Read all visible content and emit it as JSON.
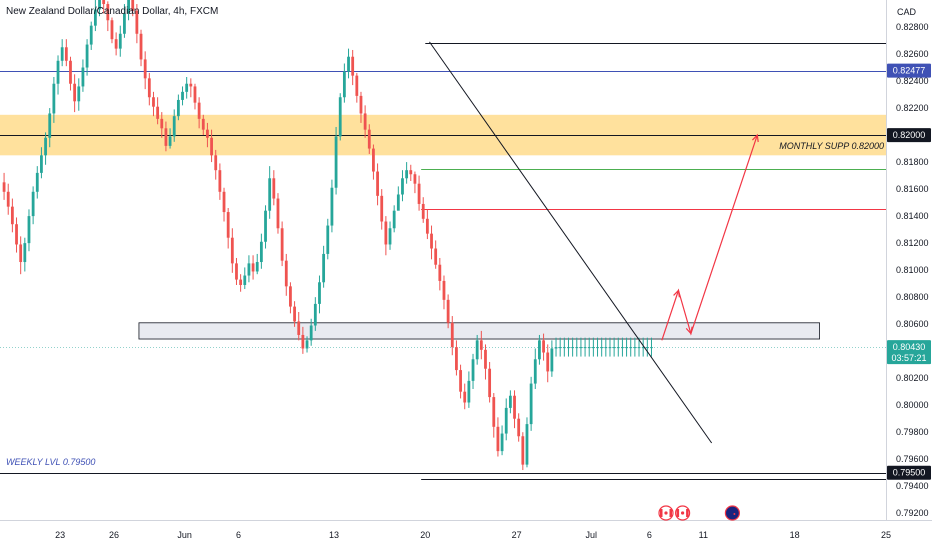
{
  "chart_data": {
    "type": "candlestick",
    "title": "New Zealand Dollar/Canadian Dollar, 4h, FXCM",
    "currency": "CAD",
    "y_range": [
      0.7915,
      0.83
    ],
    "y_ticks": [
      "0.82800",
      "0.82600",
      "0.82400",
      "0.82200",
      "0.82000",
      "0.81800",
      "0.81600",
      "0.81400",
      "0.81200",
      "0.81000",
      "0.80800",
      "0.80600",
      "0.80400",
      "0.80200",
      "0.80000",
      "0.79800",
      "0.79600",
      "0.79400",
      "0.79200"
    ],
    "x_ticks": [
      {
        "label": "23",
        "bar": 14
      },
      {
        "label": "26",
        "bar": 27
      },
      {
        "label": "Jun",
        "bar": 44
      },
      {
        "label": "6",
        "bar": 57
      },
      {
        "label": "13",
        "bar": 80
      },
      {
        "label": "20",
        "bar": 102
      },
      {
        "label": "27",
        "bar": 124
      },
      {
        "label": "Jul",
        "bar": 142
      },
      {
        "label": "6",
        "bar": 156
      },
      {
        "label": "11",
        "bar": 169
      },
      {
        "label": "18",
        "bar": 191
      },
      {
        "label": "25",
        "bar": 213
      }
    ],
    "price_levels": [
      {
        "value": 0.82477,
        "label": "0.82477",
        "color": "#3f51b5",
        "extent": "full"
      },
      {
        "value": 0.82,
        "label": "0.82000",
        "color": "#131722",
        "extent": "full"
      },
      {
        "value": 0.795,
        "label": "0.79500",
        "color": "#131722",
        "extent": "full"
      },
      {
        "value": 0.8043,
        "label": "0.80430",
        "color": "#26a69a",
        "extent": "full",
        "sublabel": "03:57:21"
      }
    ],
    "horizontal_rays": [
      {
        "value": 0.8268,
        "from_bar": 102,
        "color": "#131722"
      },
      {
        "value": 0.8175,
        "from_bar": 101,
        "color": "#4caf50"
      },
      {
        "value": 0.8145,
        "from_bar": 101,
        "color": "#f23645"
      },
      {
        "value": 0.7945,
        "from_bar": 101,
        "color": "#131722"
      }
    ],
    "zones": [
      {
        "label": "MONTHLY SUPP 0.82000",
        "from": 0.8185,
        "to": 0.8215,
        "color": "#ffc94d"
      },
      {
        "label": "",
        "from": 0.8049,
        "to": 0.8061,
        "from_bar": 33,
        "to_bar": 197,
        "color": "#e0e3eb"
      }
    ],
    "trendline": {
      "from": {
        "bar": 103,
        "value": 0.8269
      },
      "to": {
        "bar": 171,
        "value": 0.7972
      }
    },
    "projection": [
      {
        "bar": 159,
        "value": 0.8048
      },
      {
        "bar": 163,
        "value": 0.8085
      },
      {
        "bar": 166,
        "value": 0.8053
      },
      {
        "bar": 182,
        "value": 0.82
      }
    ],
    "annotations": [
      {
        "text": "MONTHLY SUPP 0.82000",
        "value": 0.8192,
        "color": "#131722"
      },
      {
        "text": "WEEKLY LVL 0.79500",
        "value": 0.7958,
        "color": "#3f51b5"
      }
    ],
    "event_icons": [
      {
        "name": "canada-flag-icon",
        "bar": 160
      },
      {
        "name": "canada-flag-icon",
        "bar": 164
      },
      {
        "name": "new-zealand-flag-icon",
        "bar": 176
      }
    ],
    "colors": {
      "up": "#26a69a",
      "down": "#ef5350",
      "red_line": "#f23645"
    },
    "candles": [
      [
        0.8165,
        0.8158,
        0.8172,
        0.8152
      ],
      [
        0.8158,
        0.8147,
        0.8164,
        0.8141
      ],
      [
        0.8147,
        0.8134,
        0.8153,
        0.8128
      ],
      [
        0.8134,
        0.8119,
        0.8139,
        0.8113
      ],
      [
        0.8119,
        0.8106,
        0.8125,
        0.8097
      ],
      [
        0.8106,
        0.812,
        0.8124,
        0.8099
      ],
      [
        0.812,
        0.814,
        0.8145,
        0.8114
      ],
      [
        0.814,
        0.8158,
        0.8162,
        0.8134
      ],
      [
        0.8158,
        0.8172,
        0.8177,
        0.8153
      ],
      [
        0.8172,
        0.8185,
        0.8191,
        0.8168
      ],
      [
        0.8185,
        0.8198,
        0.8202,
        0.8178
      ],
      [
        0.8198,
        0.8216,
        0.822,
        0.8191
      ],
      [
        0.8216,
        0.8238,
        0.8243,
        0.8209
      ],
      [
        0.8238,
        0.8255,
        0.8259,
        0.823
      ],
      [
        0.8255,
        0.8265,
        0.8271,
        0.8251
      ],
      [
        0.8265,
        0.8255,
        0.8271,
        0.8251
      ],
      [
        0.8255,
        0.8238,
        0.8258,
        0.8233
      ],
      [
        0.8238,
        0.8225,
        0.8245,
        0.8217
      ],
      [
        0.8225,
        0.8236,
        0.8242,
        0.8218
      ],
      [
        0.8236,
        0.825,
        0.8256,
        0.8232
      ],
      [
        0.825,
        0.8267,
        0.8271,
        0.8244
      ],
      [
        0.8267,
        0.8281,
        0.8284,
        0.8263
      ],
      [
        0.8281,
        0.8293,
        0.8301,
        0.8277
      ],
      [
        0.8293,
        0.8302,
        0.8307,
        0.8288
      ],
      [
        0.8302,
        0.8297,
        0.8307,
        0.829
      ],
      [
        0.8297,
        0.8285,
        0.8299,
        0.8277
      ],
      [
        0.8285,
        0.8271,
        0.8287,
        0.8268
      ],
      [
        0.8271,
        0.8264,
        0.8276,
        0.8259
      ],
      [
        0.8264,
        0.8275,
        0.8281,
        0.8258
      ],
      [
        0.8275,
        0.829,
        0.8297,
        0.8272
      ],
      [
        0.829,
        0.83,
        0.8306,
        0.8285
      ],
      [
        0.83,
        0.8292,
        0.8307,
        0.8288
      ],
      [
        0.8292,
        0.8275,
        0.8297,
        0.8268
      ],
      [
        0.8275,
        0.8256,
        0.8278,
        0.8251
      ],
      [
        0.8256,
        0.8242,
        0.8262,
        0.8234
      ],
      [
        0.8242,
        0.8228,
        0.8246,
        0.8222
      ],
      [
        0.8228,
        0.8221,
        0.8232,
        0.8214
      ],
      [
        0.8221,
        0.8212,
        0.8228,
        0.8208
      ],
      [
        0.8212,
        0.8205,
        0.8217,
        0.8198
      ],
      [
        0.8205,
        0.8192,
        0.821,
        0.8188
      ],
      [
        0.8192,
        0.8199,
        0.8205,
        0.819
      ],
      [
        0.8199,
        0.8214,
        0.8219,
        0.8195
      ],
      [
        0.8214,
        0.8226,
        0.823,
        0.8211
      ],
      [
        0.8226,
        0.8232,
        0.8236,
        0.8222
      ],
      [
        0.8232,
        0.8238,
        0.8243,
        0.8227
      ],
      [
        0.8238,
        0.8236,
        0.8242,
        0.8228
      ],
      [
        0.8236,
        0.8224,
        0.8238,
        0.8219
      ],
      [
        0.8224,
        0.8212,
        0.8228,
        0.8205
      ],
      [
        0.8212,
        0.8204,
        0.8215,
        0.82
      ],
      [
        0.8204,
        0.8198,
        0.8209,
        0.8191
      ],
      [
        0.8198,
        0.8185,
        0.8204,
        0.818
      ],
      [
        0.8185,
        0.8174,
        0.8189,
        0.8167
      ],
      [
        0.8174,
        0.8158,
        0.8179,
        0.8152
      ],
      [
        0.8158,
        0.8143,
        0.8161,
        0.8136
      ],
      [
        0.8143,
        0.8124,
        0.8146,
        0.8116
      ],
      [
        0.8124,
        0.8105,
        0.8131,
        0.8098
      ],
      [
        0.8105,
        0.8093,
        0.8109,
        0.8089
      ],
      [
        0.8093,
        0.8089,
        0.8097,
        0.8084
      ],
      [
        0.8089,
        0.8096,
        0.8102,
        0.8086
      ],
      [
        0.8096,
        0.8105,
        0.8111,
        0.8091
      ],
      [
        0.8105,
        0.8099,
        0.8111,
        0.8093
      ],
      [
        0.8099,
        0.8106,
        0.8112,
        0.8097
      ],
      [
        0.8106,
        0.8121,
        0.8127,
        0.8101
      ],
      [
        0.8121,
        0.8144,
        0.8148,
        0.8116
      ],
      [
        0.8144,
        0.8168,
        0.8177,
        0.8138
      ],
      [
        0.8168,
        0.8153,
        0.8174,
        0.8148
      ],
      [
        0.8153,
        0.8131,
        0.8157,
        0.8127
      ],
      [
        0.8131,
        0.8107,
        0.8136,
        0.8103
      ],
      [
        0.8107,
        0.8088,
        0.8112,
        0.8081
      ],
      [
        0.8088,
        0.8073,
        0.8091,
        0.8068
      ],
      [
        0.8073,
        0.8062,
        0.8077,
        0.8058
      ],
      [
        0.8062,
        0.8052,
        0.8069,
        0.8048
      ],
      [
        0.8052,
        0.8042,
        0.8058,
        0.8038
      ],
      [
        0.8042,
        0.8048,
        0.8051,
        0.8039
      ],
      [
        0.8048,
        0.8059,
        0.8064,
        0.8044
      ],
      [
        0.8059,
        0.8075,
        0.808,
        0.8055
      ],
      [
        0.8075,
        0.8091,
        0.8096,
        0.8068
      ],
      [
        0.8091,
        0.8112,
        0.8118,
        0.8087
      ],
      [
        0.8112,
        0.8133,
        0.8138,
        0.8108
      ],
      [
        0.8133,
        0.8161,
        0.8167,
        0.8128
      ],
      [
        0.8161,
        0.8199,
        0.8206,
        0.8156
      ],
      [
        0.8199,
        0.8228,
        0.8231,
        0.8196
      ],
      [
        0.8228,
        0.8247,
        0.8253,
        0.8224
      ],
      [
        0.8247,
        0.8258,
        0.8264,
        0.8242
      ],
      [
        0.8258,
        0.8244,
        0.8263,
        0.8237
      ],
      [
        0.8244,
        0.8229,
        0.8246,
        0.8224
      ],
      [
        0.8229,
        0.8216,
        0.8232,
        0.8209
      ],
      [
        0.8216,
        0.8204,
        0.8222,
        0.8198
      ],
      [
        0.8204,
        0.819,
        0.8208,
        0.8186
      ],
      [
        0.819,
        0.8173,
        0.8193,
        0.8167
      ],
      [
        0.8173,
        0.8155,
        0.8179,
        0.8148
      ],
      [
        0.8155,
        0.8136,
        0.816,
        0.813
      ],
      [
        0.8136,
        0.8119,
        0.814,
        0.8111
      ],
      [
        0.8119,
        0.8131,
        0.8136,
        0.8115
      ],
      [
        0.8131,
        0.8144,
        0.8148,
        0.8128
      ],
      [
        0.8144,
        0.8156,
        0.8162,
        0.8151
      ],
      [
        0.8156,
        0.8168,
        0.8174,
        0.8151
      ],
      [
        0.8168,
        0.8174,
        0.818,
        0.8164
      ],
      [
        0.8174,
        0.8171,
        0.8178,
        0.8166
      ],
      [
        0.8171,
        0.8164,
        0.8173,
        0.8157
      ],
      [
        0.8164,
        0.8149,
        0.817,
        0.8144
      ],
      [
        0.8149,
        0.8138,
        0.8154,
        0.8135
      ],
      [
        0.8138,
        0.8127,
        0.8145,
        0.8123
      ],
      [
        0.8127,
        0.8116,
        0.8133,
        0.8108
      ],
      [
        0.8116,
        0.8104,
        0.8122,
        0.8101
      ],
      [
        0.8104,
        0.8092,
        0.8109,
        0.8085
      ],
      [
        0.8092,
        0.8078,
        0.8096,
        0.8071
      ],
      [
        0.8078,
        0.8061,
        0.8082,
        0.8057
      ],
      [
        0.8061,
        0.8043,
        0.8066,
        0.8037
      ],
      [
        0.8043,
        0.8026,
        0.8048,
        0.8022
      ],
      [
        0.8026,
        0.801,
        0.803,
        0.8005
      ],
      [
        0.801,
        0.8002,
        0.8016,
        0.7997
      ],
      [
        0.8002,
        0.8018,
        0.8025,
        0.7998
      ],
      [
        0.8018,
        0.8034,
        0.8038,
        0.8012
      ],
      [
        0.8034,
        0.8048,
        0.8052,
        0.803
      ],
      [
        0.8048,
        0.8041,
        0.8055,
        0.8034
      ],
      [
        0.8041,
        0.8027,
        0.8045,
        0.8019
      ],
      [
        0.8027,
        0.8006,
        0.8032,
        0.8002
      ],
      [
        0.8006,
        0.7984,
        0.8009,
        0.7976
      ],
      [
        0.7984,
        0.7966,
        0.7991,
        0.7962
      ],
      [
        0.7966,
        0.7979,
        0.7985,
        0.7963
      ],
      [
        0.7979,
        0.7998,
        0.8005,
        0.7974
      ],
      [
        0.7998,
        0.8007,
        0.8011,
        0.7994
      ],
      [
        0.8007,
        0.799,
        0.8011,
        0.7983
      ],
      [
        0.799,
        0.7977,
        0.7994,
        0.7973
      ],
      [
        0.7977,
        0.7956,
        0.798,
        0.7952
      ],
      [
        0.7956,
        0.7986,
        0.7991,
        0.7954
      ],
      [
        0.7986,
        0.8016,
        0.8021,
        0.7981
      ],
      [
        0.8016,
        0.8034,
        0.8042,
        0.8012
      ],
      [
        0.8034,
        0.8048,
        0.8052,
        0.803
      ],
      [
        0.8048,
        0.8039,
        0.8053,
        0.8033
      ],
      [
        0.8039,
        0.8025,
        0.8045,
        0.8017
      ],
      [
        0.8025,
        0.8042,
        0.8048,
        0.8021
      ],
      [
        0.8042,
        0.8043,
        0.805,
        0.8036
      ],
      [
        0.8043,
        0.8043,
        0.805,
        0.8036
      ],
      [
        0.8043,
        0.8043,
        0.805,
        0.8036
      ],
      [
        0.8043,
        0.8043,
        0.805,
        0.8036
      ],
      [
        0.8043,
        0.8043,
        0.805,
        0.8036
      ],
      [
        0.8043,
        0.8043,
        0.805,
        0.8036
      ],
      [
        0.8043,
        0.8043,
        0.805,
        0.8036
      ],
      [
        0.8043,
        0.8043,
        0.805,
        0.8036
      ],
      [
        0.8043,
        0.8043,
        0.805,
        0.8036
      ],
      [
        0.8043,
        0.8043,
        0.805,
        0.8036
      ],
      [
        0.8043,
        0.8043,
        0.805,
        0.8036
      ],
      [
        0.8043,
        0.8043,
        0.805,
        0.8036
      ],
      [
        0.8043,
        0.8043,
        0.805,
        0.8036
      ],
      [
        0.8043,
        0.8043,
        0.805,
        0.8036
      ],
      [
        0.8043,
        0.8043,
        0.805,
        0.8036
      ],
      [
        0.8043,
        0.8043,
        0.805,
        0.8036
      ],
      [
        0.8043,
        0.8043,
        0.805,
        0.8036
      ],
      [
        0.8043,
        0.8043,
        0.805,
        0.8036
      ],
      [
        0.8043,
        0.8043,
        0.805,
        0.8036
      ],
      [
        0.8043,
        0.8043,
        0.805,
        0.8036
      ],
      [
        0.8043,
        0.8043,
        0.805,
        0.8036
      ],
      [
        0.8043,
        0.8043,
        0.805,
        0.8036
      ],
      [
        0.8043,
        0.8043,
        0.805,
        0.8036
      ],
      [
        0.8043,
        0.8043,
        0.805,
        0.8036
      ]
    ]
  }
}
